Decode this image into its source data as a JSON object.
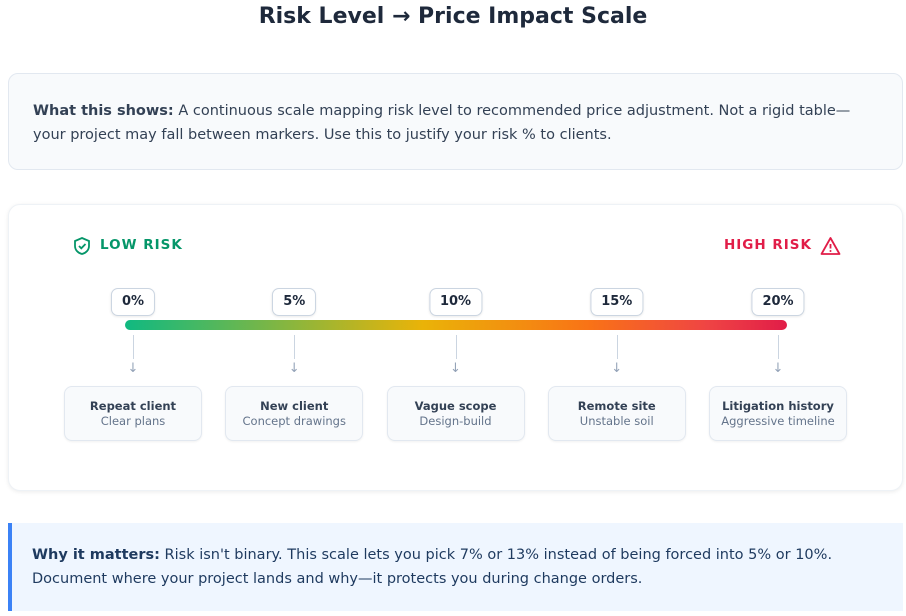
{
  "title": "Risk Level → Price Impact Scale",
  "intro": {
    "label": "What this shows:",
    "text": "A continuous scale mapping risk level to recommended price adjustment. Not a rigid table—your project may fall between markers. Use this to justify your risk % to clients."
  },
  "scale": {
    "low_label": "LOW RISK",
    "high_label": "HIGH RISK",
    "markers": [
      {
        "label": "0%",
        "title": "Repeat client",
        "subtitle": "Clear plans"
      },
      {
        "label": "5%",
        "title": "New client",
        "subtitle": "Concept drawings"
      },
      {
        "label": "10%",
        "title": "Vague scope",
        "subtitle": "Design-build"
      },
      {
        "label": "15%",
        "title": "Remote site",
        "subtitle": "Unstable soil"
      },
      {
        "label": "20%",
        "title": "Litigation history",
        "subtitle": "Aggressive timeline"
      }
    ]
  },
  "footer": {
    "label": "Why it matters:",
    "text": "Risk isn't binary. This scale lets you pick 7% or 13% instead of being forced into 5% or 10%. Document where your project lands and why—it protects you during change orders."
  }
}
